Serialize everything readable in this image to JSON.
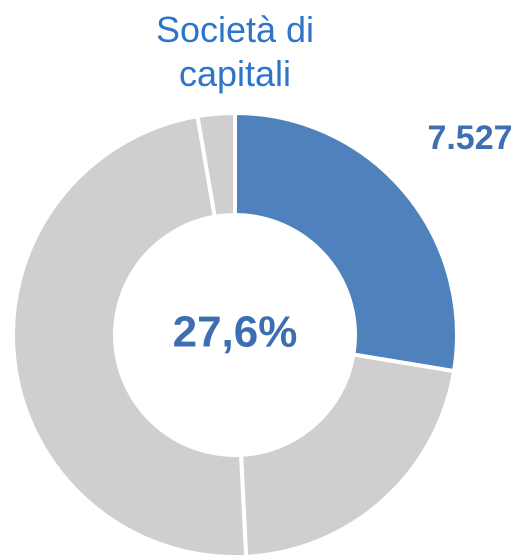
{
  "chart_data": {
    "type": "pie",
    "title": "Società di capitali",
    "annotation": "7.527",
    "values": [
      27.6,
      21.6,
      48.1,
      2.7
    ],
    "value_labels": [
      "27,6%",
      null,
      null,
      null
    ],
    "colors": [
      "#4f81bd",
      "#d0cecf",
      "#d0cecf",
      "#d0cecf"
    ],
    "donut": true
  }
}
